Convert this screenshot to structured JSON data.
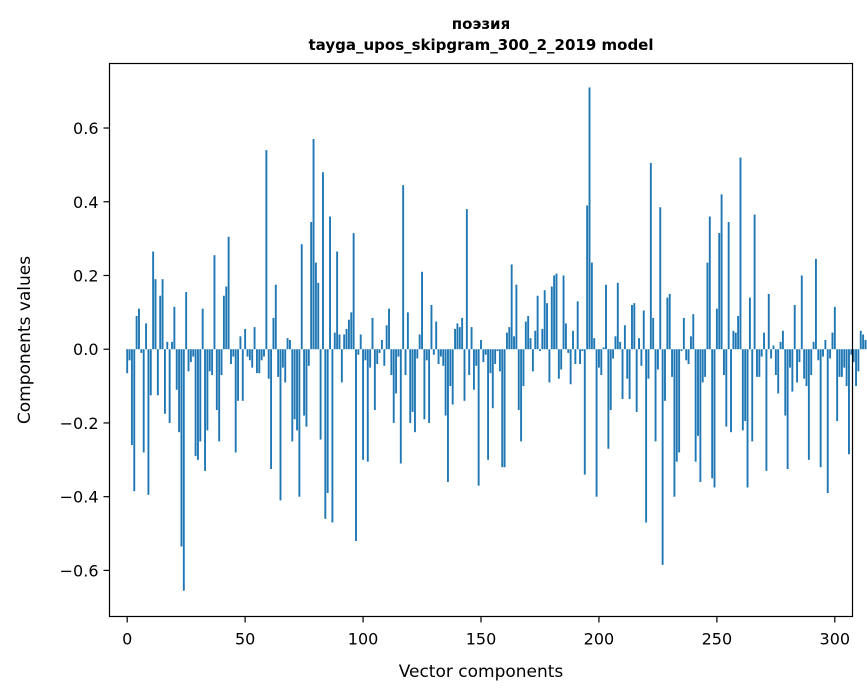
{
  "chart_data": {
    "type": "bar",
    "title": "поэзия",
    "subtitle": "tayga_upos_skipgram_300_2_2019 model",
    "xlabel": "Vector components",
    "ylabel": "Components values",
    "xlim": [
      -7.5,
      307.5
    ],
    "ylim": [
      -0.725,
      0.775
    ],
    "xticks": [
      0,
      50,
      100,
      150,
      200,
      250,
      300
    ],
    "xtick_labels": [
      "0",
      "50",
      "100",
      "150",
      "200",
      "250",
      "300"
    ],
    "yticks": [
      0.6,
      0.4,
      0.2,
      0.0,
      -0.2,
      -0.4,
      -0.6
    ],
    "ytick_labels": [
      "0.6",
      "0.4",
      "0.2",
      "0.0",
      "−0.2",
      "−0.4",
      "−0.6"
    ],
    "bar_color": "#1f77b4",
    "grid": false,
    "values": [
      -0.065,
      -0.03,
      -0.26,
      -0.385,
      0.09,
      0.11,
      -0.01,
      -0.28,
      0.07,
      -0.395,
      -0.125,
      0.265,
      0.19,
      -0.125,
      0.145,
      0.19,
      -0.175,
      0.02,
      -0.2,
      0.02,
      0.115,
      -0.11,
      -0.225,
      -0.535,
      -0.655,
      0.155,
      -0.06,
      -0.035,
      -0.02,
      -0.29,
      -0.3,
      -0.25,
      0.11,
      -0.33,
      -0.22,
      -0.06,
      -0.07,
      0.255,
      -0.165,
      -0.25,
      -0.07,
      0.145,
      0.17,
      0.305,
      -0.04,
      -0.02,
      -0.28,
      -0.14,
      0.035,
      -0.14,
      0.055,
      -0.02,
      -0.03,
      -0.05,
      0.06,
      -0.065,
      -0.065,
      -0.03,
      -0.02,
      0.54,
      -0.08,
      -0.325,
      0.085,
      0.175,
      -0.075,
      -0.41,
      -0.05,
      -0.09,
      0.03,
      0.025,
      -0.25,
      -0.19,
      -0.22,
      -0.4,
      0.285,
      -0.18,
      -0.21,
      -0.045,
      0.345,
      0.57,
      0.235,
      0.18,
      -0.245,
      0.48,
      -0.46,
      -0.39,
      0.36,
      -0.47,
      0.045,
      0.265,
      0.04,
      -0.09,
      0.04,
      0.055,
      0.08,
      0.1,
      0.315,
      -0.52,
      -0.015,
      0.04,
      -0.3,
      -0.03,
      -0.305,
      -0.05,
      0.085,
      -0.165,
      -0.04,
      -0.01,
      0.025,
      -0.045,
      0.065,
      0.11,
      -0.07,
      -0.2,
      -0.12,
      -0.02,
      -0.31,
      0.445,
      -0.07,
      0.1,
      -0.2,
      -0.17,
      -0.225,
      -0.025,
      0.04,
      0.21,
      -0.19,
      -0.03,
      -0.2,
      0.12,
      -0.015,
      0.075,
      -0.04,
      -0.02,
      -0.045,
      -0.18,
      -0.36,
      -0.1,
      -0.15,
      0.055,
      0.07,
      0.06,
      0.085,
      -0.14,
      0.38,
      -0.07,
      0.06,
      -0.11,
      -0.045,
      -0.37,
      0.025,
      -0.035,
      -0.015,
      -0.3,
      -0.065,
      -0.16,
      -0.04,
      -0.005,
      -0.06,
      -0.32,
      -0.32,
      0.045,
      0.06,
      0.23,
      0.035,
      0.175,
      -0.165,
      -0.25,
      -0.1,
      0.075,
      0.09,
      0.03,
      -0.06,
      0.05,
      0.145,
      -0.005,
      0.055,
      0.16,
      0.125,
      -0.09,
      0.17,
      0.2,
      0.205,
      -0.08,
      -0.055,
      0.2,
      0.07,
      -0.01,
      -0.095,
      0.05,
      -0.04,
      0.13,
      -0.04,
      -0.005,
      -0.34,
      0.39,
      0.71,
      0.235,
      0.03,
      -0.4,
      -0.05,
      -0.07,
      0.005,
      0.175,
      -0.27,
      -0.165,
      -0.025,
      0.035,
      0.18,
      0.02,
      -0.135,
      0.065,
      -0.08,
      -0.135,
      0.12,
      0.125,
      -0.17,
      0.03,
      -0.045,
      0.105,
      -0.47,
      -0.08,
      0.505,
      0.085,
      -0.25,
      -0.055,
      0.385,
      -0.585,
      -0.14,
      0.14,
      0.15,
      -0.075,
      -0.4,
      -0.305,
      -0.28,
      -0.005,
      0.085,
      -0.03,
      -0.04,
      0.035,
      0.095,
      -0.305,
      -0.235,
      -0.36,
      -0.09,
      -0.075,
      0.235,
      0.36,
      -0.35,
      -0.375,
      0.11,
      0.315,
      0.42,
      -0.07,
      -0.21,
      0.345,
      -0.225,
      0.05,
      0.045,
      0.09,
      0.52,
      -0.22,
      -0.195,
      -0.375,
      0.14,
      -0.25,
      0.365,
      -0.075,
      -0.075,
      -0.02,
      0.045,
      -0.33,
      0.15,
      -0.025,
      0.01,
      -0.07,
      -0.12,
      0.02,
      0.05,
      -0.18,
      -0.325,
      -0.05,
      -0.115,
      0.12,
      -0.09,
      -0.035,
      0.2,
      -0.08,
      -0.1,
      -0.3,
      -0.07,
      0.02,
      0.245,
      -0.03,
      -0.32,
      -0.02,
      0.025,
      -0.39,
      -0.025,
      0.045,
      0.115,
      -0.195,
      -0.075,
      -0.075,
      -0.05,
      -0.1,
      -0.285,
      -0.015,
      -0.035,
      -0.1,
      -0.06,
      0.05,
      0.04,
      0.025,
      0.025,
      -0.04,
      0.025,
      0.04,
      0.01,
      0.005,
      0.03,
      0.045,
      0.05,
      0.06,
      0.075,
      0.085,
      0.095,
      0.1,
      0.11,
      0.12,
      0.13,
      0.14,
      0.15,
      0.16,
      0.17,
      0.18,
      0.19,
      0.2,
      0.21,
      0.22,
      0.23,
      0.24,
      0.25,
      0.26,
      0.27,
      0.28,
      0.29,
      0.3
    ]
  }
}
